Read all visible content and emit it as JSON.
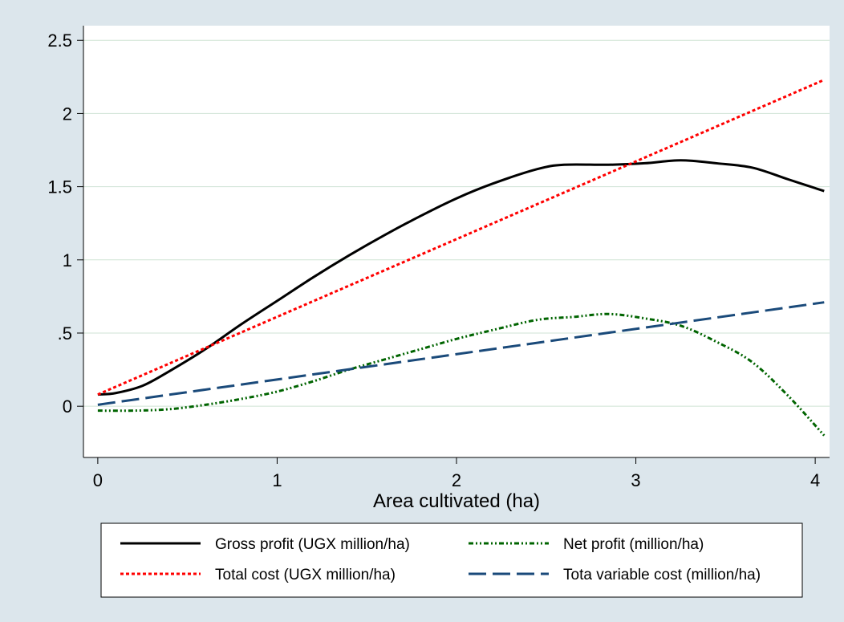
{
  "chart_data": {
    "type": "line",
    "xlabel": "Area cultivated (ha)",
    "ylabel": "",
    "xlim": [
      -0.08,
      4.08
    ],
    "ylim": [
      -0.35,
      2.6
    ],
    "xticks": [
      0,
      1,
      2,
      3,
      4
    ],
    "xtick_labels": [
      "0",
      "1",
      "2",
      "3",
      "4"
    ],
    "yticks": [
      0,
      0.5,
      1,
      1.5,
      2,
      2.5
    ],
    "ytick_labels": [
      "0",
      ".5",
      "1",
      "1.5",
      "2",
      "2.5"
    ],
    "grid": "horizontal",
    "legend": "bottom",
    "series": [
      {
        "name": "Gross profit (UGX million/ha)",
        "color": "#000000",
        "style": "solid",
        "x": [
          0,
          0.1,
          0.25,
          0.4,
          0.6,
          0.8,
          1.0,
          1.2,
          1.4,
          1.6,
          1.8,
          2.0,
          2.2,
          2.45,
          2.6,
          2.85,
          3.05,
          3.25,
          3.45,
          3.65,
          3.85,
          4.05
        ],
        "y": [
          0.08,
          0.09,
          0.14,
          0.24,
          0.39,
          0.56,
          0.72,
          0.88,
          1.03,
          1.17,
          1.3,
          1.42,
          1.52,
          1.62,
          1.65,
          1.65,
          1.66,
          1.68,
          1.66,
          1.63,
          1.55,
          1.47
        ]
      },
      {
        "name": "Total cost (UGX million/ha)",
        "color": "#ff0000",
        "style": "dotted",
        "x": [
          0,
          4.05
        ],
        "y": [
          0.08,
          2.23
        ]
      },
      {
        "name": "Net profit (million/ha)",
        "color": "#006400",
        "style": "dashdotdot",
        "x": [
          0,
          0.2,
          0.4,
          0.6,
          0.8,
          1.0,
          1.2,
          1.4,
          1.6,
          1.8,
          2.0,
          2.2,
          2.45,
          2.65,
          2.85,
          3.05,
          3.25,
          3.45,
          3.65,
          3.85,
          4.05
        ],
        "y": [
          -0.03,
          -0.03,
          -0.02,
          0.01,
          0.05,
          0.1,
          0.17,
          0.25,
          0.32,
          0.39,
          0.46,
          0.52,
          0.59,
          0.61,
          0.63,
          0.6,
          0.55,
          0.44,
          0.3,
          0.07,
          -0.2
        ]
      },
      {
        "name": "Tota variable cost (million/ha)",
        "color": "#1a4a7a",
        "style": "longdash",
        "x": [
          0,
          4.05
        ],
        "y": [
          0.01,
          0.71
        ]
      }
    ]
  }
}
